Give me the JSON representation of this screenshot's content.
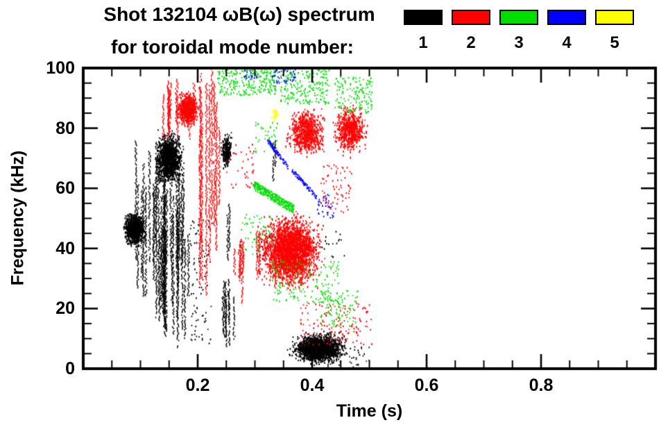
{
  "title": {
    "line1": "Shot 132104 ωB(ω) spectrum",
    "line2": "for toroidal mode number:"
  },
  "legend": {
    "items": [
      {
        "label": "1",
        "color": "#000000"
      },
      {
        "label": "2",
        "color": "#ff0000"
      },
      {
        "label": "3",
        "color": "#00dd00"
      },
      {
        "label": "4",
        "color": "#0000ff"
      },
      {
        "label": "5",
        "color": "#ffff00"
      }
    ]
  },
  "chart_data": {
    "type": "scatter",
    "title": "Shot 132104 ωB(ω) spectrum for toroidal mode number",
    "xlabel": "Time (s)",
    "ylabel": "Frequency (kHz)",
    "xlim": [
      0.0,
      1.0
    ],
    "ylim": [
      0,
      100
    ],
    "xticks": [
      "0.2",
      "0.4",
      "0.6",
      "0.8"
    ],
    "yticks": [
      "0",
      "20",
      "40",
      "60",
      "80",
      "100"
    ],
    "x_minor_step": 0.05,
    "y_minor_step": 5,
    "grid": false,
    "legend_position": "top-right",
    "series": [
      {
        "name": "1",
        "color": "#000000",
        "clusters": [
          {
            "style": "blob",
            "t": [
              0.068,
              0.112
            ],
            "f": [
              40,
              53
            ],
            "n": 900
          },
          {
            "style": "streaks",
            "t": [
              0.085,
              0.15
            ],
            "f": [
              12,
              76
            ],
            "k": 16
          },
          {
            "style": "blob",
            "t": [
              0.122,
              0.178
            ],
            "f": [
              60,
              80
            ],
            "n": 1300
          },
          {
            "style": "streaks",
            "t": [
              0.13,
              0.195
            ],
            "f": [
              4,
              58
            ],
            "k": 14
          },
          {
            "style": "streaks",
            "t": [
              0.15,
              0.185
            ],
            "f": [
              30,
              72
            ],
            "k": 6
          },
          {
            "style": "sparse",
            "t": [
              0.185,
              0.225
            ],
            "f": [
              8,
              50
            ],
            "n": 90
          },
          {
            "style": "blob",
            "t": [
              0.24,
              0.262
            ],
            "f": [
              66,
              79
            ],
            "n": 260
          },
          {
            "style": "streaks",
            "t": [
              0.238,
              0.275
            ],
            "f": [
              6,
              30
            ],
            "k": 7
          },
          {
            "style": "streaks",
            "t": [
              0.25,
              0.262
            ],
            "f": [
              30,
              55
            ],
            "k": 2
          },
          {
            "style": "blob",
            "t": [
              0.355,
              0.47
            ],
            "f": [
              0.5,
              13
            ],
            "n": 1600
          },
          {
            "style": "sparse",
            "t": [
              0.3,
              0.46
            ],
            "f": [
              37,
              46
            ],
            "n": 70
          },
          {
            "style": "streaks",
            "t": [
              0.322,
              0.338
            ],
            "f": [
              60,
              78
            ],
            "k": 2
          },
          {
            "style": "sparse",
            "t": [
              0.42,
              0.5
            ],
            "f": [
              0.5,
              8
            ],
            "n": 60
          }
        ]
      },
      {
        "name": "2",
        "color": "#ff0000",
        "clusters": [
          {
            "style": "streaks",
            "t": [
              0.138,
              0.205
            ],
            "f": [
              76,
              97
            ],
            "k": 12
          },
          {
            "style": "blob",
            "t": [
              0.16,
              0.205
            ],
            "f": [
              80,
              93
            ],
            "n": 650
          },
          {
            "style": "streaks",
            "t": [
              0.198,
              0.245
            ],
            "f": [
              24,
              100
            ],
            "k": 9
          },
          {
            "style": "streaks",
            "t": [
              0.25,
              0.285
            ],
            "f": [
              20,
              46
            ],
            "k": 6
          },
          {
            "style": "blob",
            "t": [
              0.3,
              0.425
            ],
            "f": [
              25,
              53
            ],
            "n": 2600
          },
          {
            "style": "streaks",
            "t": [
              0.3,
              0.36
            ],
            "f": [
              26,
              50
            ],
            "k": 8
          },
          {
            "style": "blob",
            "t": [
              0.352,
              0.428
            ],
            "f": [
              69,
              88
            ],
            "n": 750
          },
          {
            "style": "blob",
            "t": [
              0.432,
              0.5
            ],
            "f": [
              70,
              89
            ],
            "n": 650
          },
          {
            "style": "sparse",
            "t": [
              0.38,
              0.505
            ],
            "f": [
              8,
              22
            ],
            "n": 140
          },
          {
            "style": "sparse",
            "t": [
              0.415,
              0.47
            ],
            "f": [
              52,
              68
            ],
            "n": 70
          },
          {
            "style": "sparse",
            "t": [
              0.25,
              0.3
            ],
            "f": [
              60,
              75
            ],
            "n": 40
          }
        ]
      },
      {
        "name": "3",
        "color": "#00dd00",
        "clusters": [
          {
            "style": "sparse",
            "t": [
              0.235,
              0.34
            ],
            "f": [
              91,
              100
            ],
            "n": 260
          },
          {
            "style": "sparse",
            "t": [
              0.345,
              0.43
            ],
            "f": [
              88,
              100
            ],
            "n": 220
          },
          {
            "style": "sparse",
            "t": [
              0.44,
              0.505
            ],
            "f": [
              85,
              97
            ],
            "n": 150
          },
          {
            "style": "arc",
            "t": [
              0.298,
              0.368
            ],
            "f": [
              53,
              61
            ],
            "n": 380,
            "jit": 3
          },
          {
            "style": "sparse",
            "t": [
              0.33,
              0.45
            ],
            "f": [
              22,
              36
            ],
            "n": 150
          },
          {
            "style": "sparse",
            "t": [
              0.415,
              0.48
            ],
            "f": [
              14,
              26
            ],
            "n": 90
          },
          {
            "style": "sparse",
            "t": [
              0.275,
              0.33
            ],
            "f": [
              38,
              52
            ],
            "n": 50
          },
          {
            "style": "sparse",
            "t": [
              0.3,
              0.34
            ],
            "f": [
              72,
              82
            ],
            "n": 40
          }
        ]
      },
      {
        "name": "4",
        "color": "#0000ff",
        "clusters": [
          {
            "style": "arc",
            "t": [
              0.322,
              0.358
            ],
            "f": [
              67,
              76
            ],
            "n": 90,
            "jit": 1.5
          },
          {
            "style": "arc",
            "t": [
              0.365,
              0.408
            ],
            "f": [
              57,
              66
            ],
            "n": 90,
            "jit": 1.5
          },
          {
            "style": "sparse",
            "t": [
              0.408,
              0.438
            ],
            "f": [
              50,
              58
            ],
            "n": 35
          },
          {
            "style": "sparse",
            "t": [
              0.33,
              0.372
            ],
            "f": [
              95,
              100
            ],
            "n": 35
          },
          {
            "style": "sparse",
            "t": [
              0.278,
              0.305
            ],
            "f": [
              96,
              100
            ],
            "n": 20
          }
        ]
      },
      {
        "name": "5",
        "color": "#ffff00",
        "clusters": [
          {
            "style": "blob",
            "t": [
              0.328,
              0.342
            ],
            "f": [
              82,
              87
            ],
            "n": 30
          }
        ]
      }
    ]
  }
}
